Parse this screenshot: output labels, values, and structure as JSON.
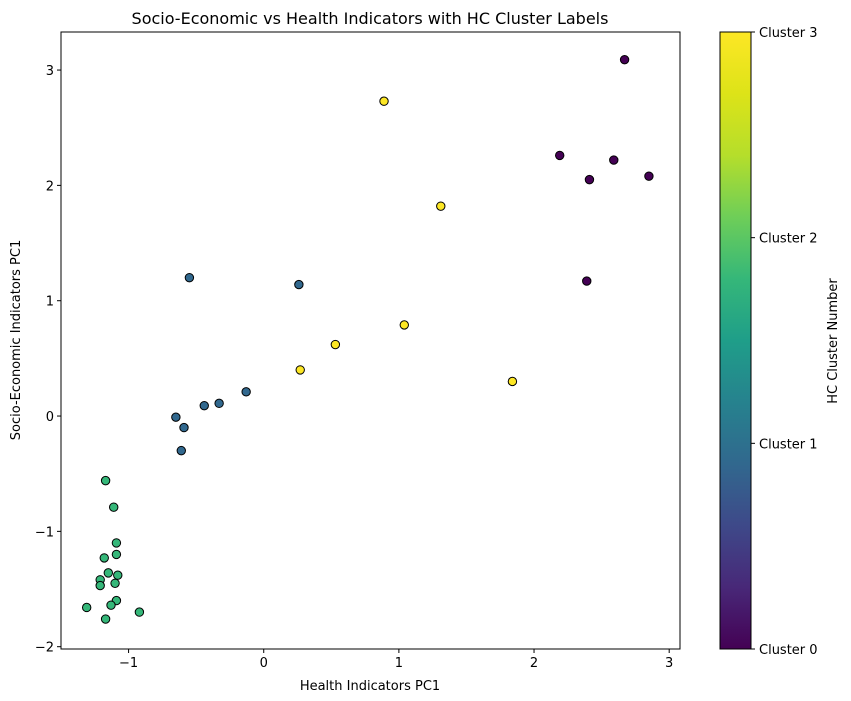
{
  "chart_data": {
    "type": "scatter",
    "title": "Socio-Economic vs Health Indicators with HC Cluster Labels",
    "xlabel": "Health Indicators PC1",
    "ylabel": "Socio-Economic Indicators PC1",
    "xlim": [
      -1.5,
      3.08
    ],
    "ylim": [
      -2.02,
      3.33
    ],
    "xticks": [
      -1,
      0,
      1,
      2,
      3
    ],
    "xtick_labels": [
      "−1",
      "0",
      "1",
      "2",
      "3"
    ],
    "yticks": [
      -2,
      -1,
      0,
      1,
      2,
      3
    ],
    "ytick_labels": [
      "−2",
      "−1",
      "0",
      "1",
      "2",
      "3"
    ],
    "grid": false,
    "colorbar": {
      "label": "HC Cluster Number",
      "range": [
        0,
        3
      ],
      "ticks": [
        0,
        1,
        2,
        3
      ],
      "tick_labels": [
        "Cluster 0",
        "Cluster 1",
        "Cluster 2",
        "Cluster 3"
      ],
      "colormap": "viridis"
    },
    "cluster_colors": [
      "#440154",
      "#31688e",
      "#35b779",
      "#fde725"
    ],
    "series": [
      {
        "name": "Cluster 0",
        "cluster": 0,
        "points": [
          {
            "x": 2.67,
            "y": 3.09
          },
          {
            "x": 2.19,
            "y": 2.26
          },
          {
            "x": 2.59,
            "y": 2.22
          },
          {
            "x": 2.41,
            "y": 2.05
          },
          {
            "x": 2.85,
            "y": 2.08
          },
          {
            "x": 2.39,
            "y": 1.17
          }
        ]
      },
      {
        "name": "Cluster 1",
        "cluster": 1,
        "points": [
          {
            "x": -0.55,
            "y": 1.2
          },
          {
            "x": 0.26,
            "y": 1.14
          },
          {
            "x": -0.13,
            "y": 0.21
          },
          {
            "x": -0.33,
            "y": 0.11
          },
          {
            "x": -0.44,
            "y": 0.09
          },
          {
            "x": -0.65,
            "y": -0.01
          },
          {
            "x": -0.59,
            "y": -0.1
          },
          {
            "x": -0.61,
            "y": -0.3
          }
        ]
      },
      {
        "name": "Cluster 2",
        "cluster": 2,
        "points": [
          {
            "x": -1.17,
            "y": -0.56
          },
          {
            "x": -1.11,
            "y": -0.79
          },
          {
            "x": -1.09,
            "y": -1.1
          },
          {
            "x": -1.09,
            "y": -1.2
          },
          {
            "x": -1.18,
            "y": -1.23
          },
          {
            "x": -1.15,
            "y": -1.36
          },
          {
            "x": -1.08,
            "y": -1.38
          },
          {
            "x": -1.21,
            "y": -1.42
          },
          {
            "x": -1.21,
            "y": -1.47
          },
          {
            "x": -1.1,
            "y": -1.45
          },
          {
            "x": -1.09,
            "y": -1.6
          },
          {
            "x": -1.13,
            "y": -1.64
          },
          {
            "x": -1.31,
            "y": -1.66
          },
          {
            "x": -0.92,
            "y": -1.7
          },
          {
            "x": -1.17,
            "y": -1.76
          }
        ]
      },
      {
        "name": "Cluster 3",
        "cluster": 3,
        "points": [
          {
            "x": 0.89,
            "y": 2.73
          },
          {
            "x": 1.31,
            "y": 1.82
          },
          {
            "x": 1.04,
            "y": 0.79
          },
          {
            "x": 0.53,
            "y": 0.62
          },
          {
            "x": 0.27,
            "y": 0.4
          },
          {
            "x": 1.84,
            "y": 0.3
          }
        ]
      }
    ]
  }
}
